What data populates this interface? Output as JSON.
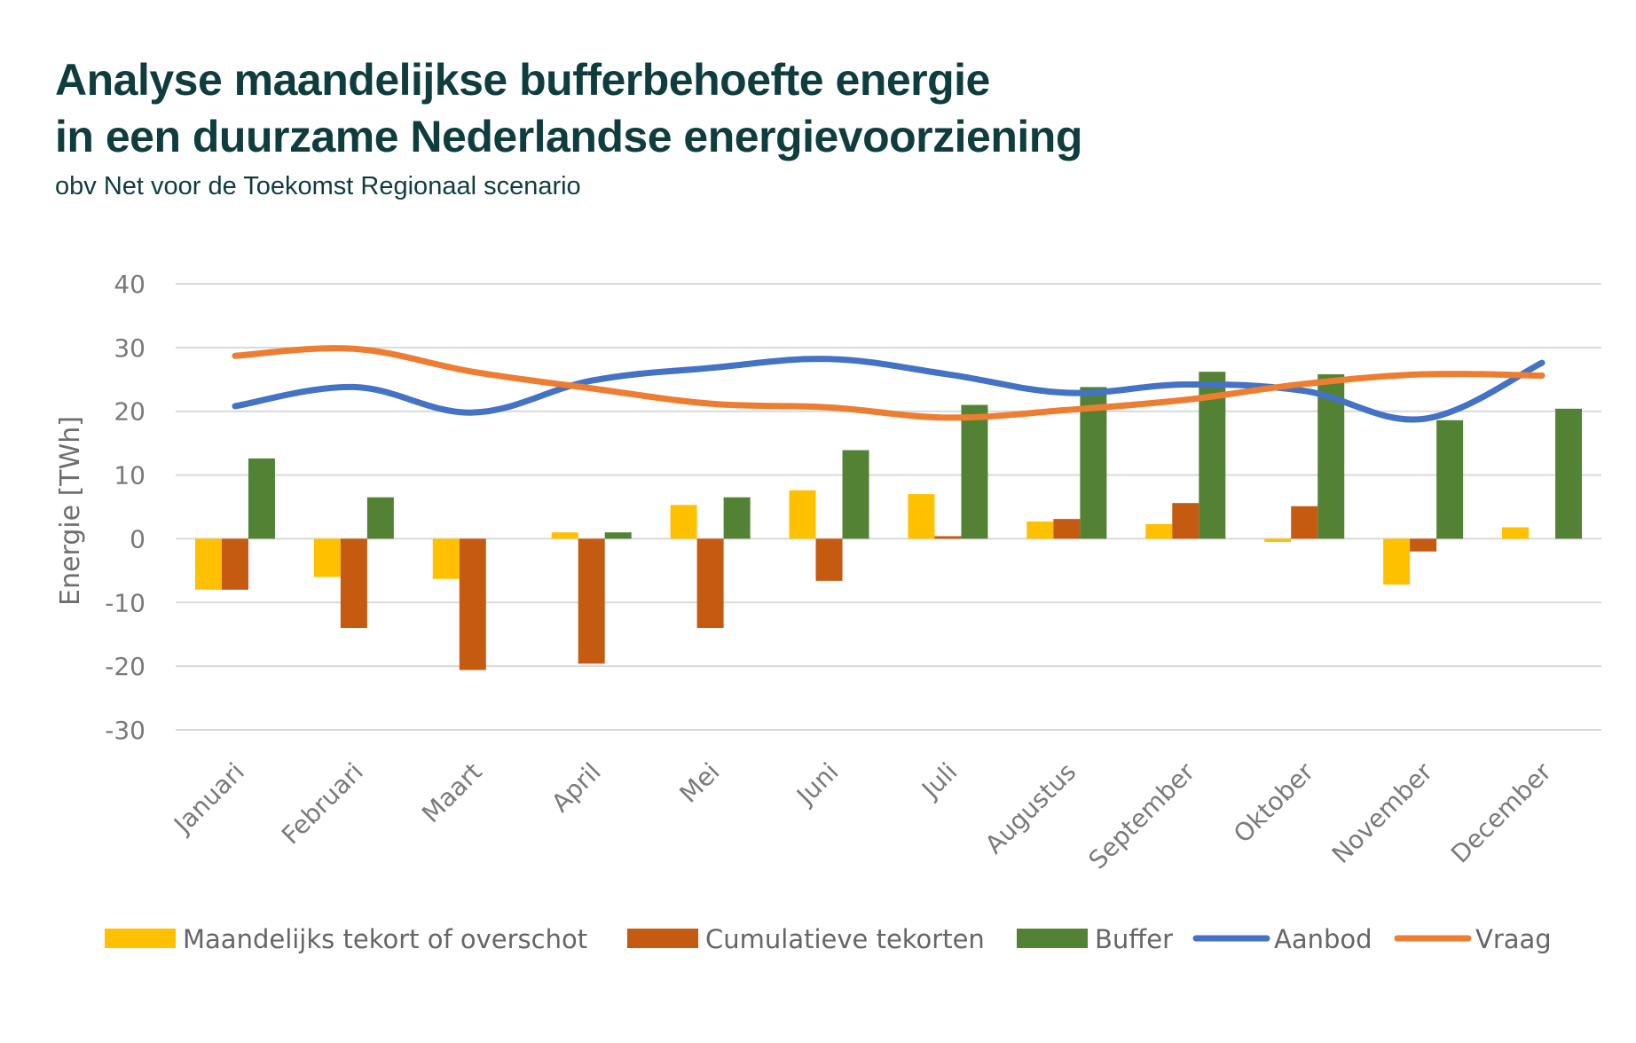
{
  "header": {
    "title_line1": "Analyse maandelijkse bufferbehoefte energie",
    "title_line2": "in een duurzame Nederlandse energievoorziening",
    "subtitle": "obv Net voor de Toekomst Regionaal scenario"
  },
  "chart_data": {
    "type": "bar",
    "ylabel": "Energie [TWh]",
    "ylim": [
      -30,
      40
    ],
    "yticks": [
      40,
      30,
      20,
      10,
      0,
      -10,
      -20,
      -30
    ],
    "grid": true,
    "legend_position": "bottom",
    "categories": [
      "Januari",
      "Februari",
      "Maart",
      "April",
      "Mei",
      "Juni",
      "Juli",
      "Augustus",
      "September",
      "Oktober",
      "November",
      "December"
    ],
    "series": [
      {
        "name": "Maandelijks tekort of overschot",
        "kind": "bar",
        "color": "#ffc000",
        "values": [
          -8,
          -6,
          -6.3,
          1,
          5.3,
          7.6,
          7,
          2.7,
          2.3,
          -0.5,
          -7.2,
          1.8
        ]
      },
      {
        "name": "Cumulatieve tekorten",
        "kind": "bar",
        "color": "#c55a11",
        "values": [
          -8,
          -14,
          -20.6,
          -19.6,
          -14,
          -6.6,
          0.4,
          3.1,
          5.6,
          5.1,
          -2,
          0
        ]
      },
      {
        "name": "Buffer",
        "kind": "bar",
        "color": "#548235",
        "values": [
          12.6,
          6.5,
          0,
          1,
          6.5,
          13.9,
          21,
          23.8,
          26.2,
          25.8,
          18.6,
          20.4
        ]
      },
      {
        "name": "Aanbod",
        "kind": "line",
        "color": "#4472c4",
        "values": [
          20.8,
          23.8,
          19.8,
          24.8,
          26.8,
          28.2,
          25.8,
          22.9,
          24.2,
          23.2,
          18.8,
          27.6
        ]
      },
      {
        "name": "Vraag",
        "kind": "line",
        "color": "#ed7d31",
        "values": [
          28.7,
          29.8,
          26.2,
          23.6,
          21.2,
          20.6,
          19,
          20.2,
          21.8,
          24.3,
          25.8,
          25.6
        ]
      }
    ]
  }
}
